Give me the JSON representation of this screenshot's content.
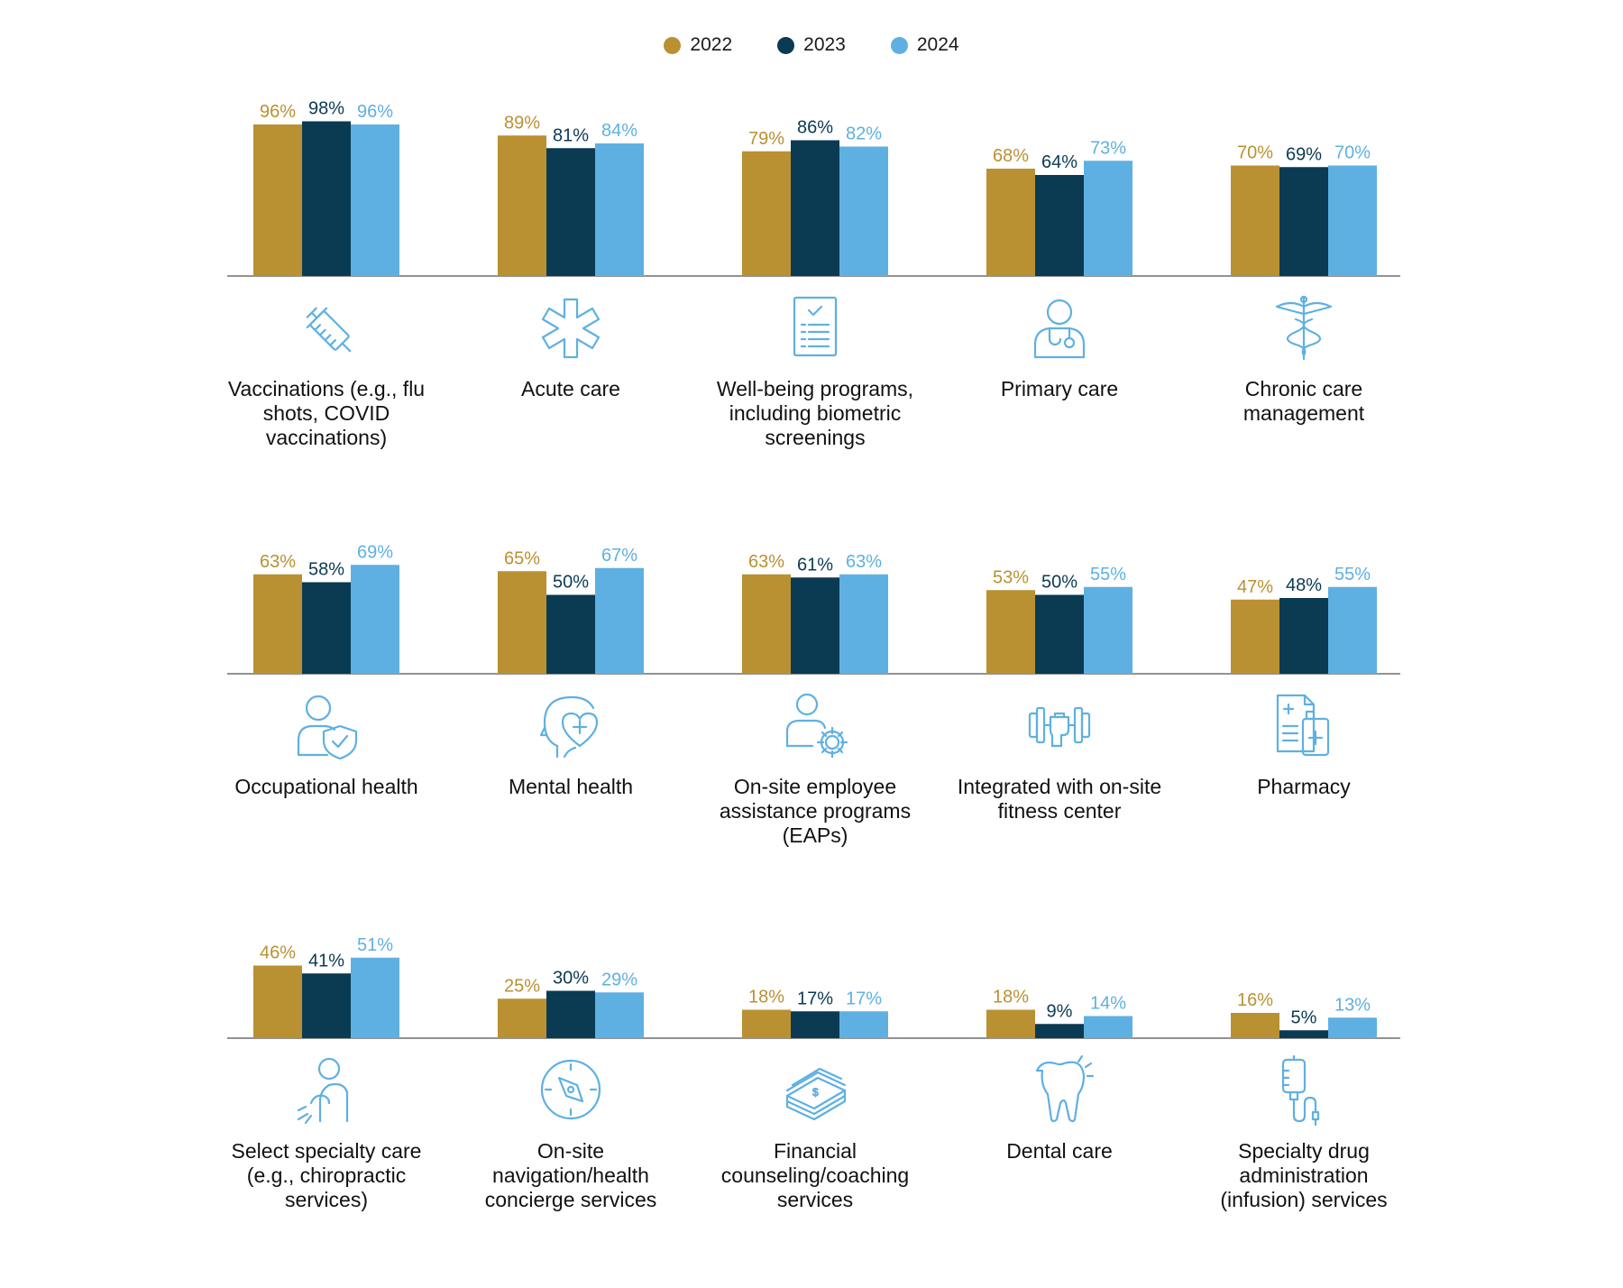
{
  "legend": [
    {
      "label": "2022",
      "color": "#B99132"
    },
    {
      "label": "2023",
      "color": "#0B3A53"
    },
    {
      "label": "2024",
      "color": "#5FB0E2"
    }
  ],
  "chart_data": {
    "type": "bar",
    "title": "",
    "xlabel": "",
    "ylabel": "",
    "ylim": [
      0,
      100
    ],
    "grid": false,
    "legend_position": "top-center",
    "series_names": [
      "2022",
      "2023",
      "2024"
    ],
    "groups": [
      {
        "category": "Vaccinations (e.g., flu shots, COVID vaccinations)",
        "icon": "syringe-icon",
        "values": [
          96,
          98,
          96
        ],
        "labels": [
          "96%",
          "98%",
          "96%"
        ]
      },
      {
        "category": "Acute care",
        "icon": "star-of-life-icon",
        "values": [
          89,
          81,
          84
        ],
        "labels": [
          "89%",
          "81%",
          "84%"
        ]
      },
      {
        "category": "Well-being programs, including biometric screenings",
        "icon": "checklist-icon",
        "values": [
          79,
          86,
          82
        ],
        "labels": [
          "79%",
          "86%",
          "82%"
        ]
      },
      {
        "category": "Primary care",
        "icon": "doctor-icon",
        "values": [
          68,
          64,
          73
        ],
        "labels": [
          "68%",
          "64%",
          "73%"
        ]
      },
      {
        "category": "Chronic care management",
        "icon": "caduceus-icon",
        "values": [
          70,
          69,
          70
        ],
        "labels": [
          "70%",
          "69%",
          "70%"
        ]
      },
      {
        "category": "Occupational health",
        "icon": "person-shield-icon",
        "values": [
          63,
          58,
          69
        ],
        "labels": [
          "63%",
          "58%",
          "69%"
        ]
      },
      {
        "category": "Mental health",
        "icon": "head-heart-icon",
        "values": [
          65,
          50,
          67
        ],
        "labels": [
          "65%",
          "50%",
          "67%"
        ]
      },
      {
        "category": "On-site employee assistance programs (EAPs)",
        "icon": "person-gear-icon",
        "values": [
          63,
          61,
          63
        ],
        "labels": [
          "63%",
          "61%",
          "63%"
        ]
      },
      {
        "category": "Integrated with on-site fitness center",
        "icon": "dumbbell-icon",
        "values": [
          53,
          50,
          55
        ],
        "labels": [
          "53%",
          "50%",
          "55%"
        ]
      },
      {
        "category": "Pharmacy",
        "icon": "prescription-icon",
        "values": [
          47,
          48,
          55
        ],
        "labels": [
          "47%",
          "48%",
          "55%"
        ]
      },
      {
        "category": "Select specialty care (e.g., chiropractic services)",
        "icon": "back-pain-icon",
        "values": [
          46,
          41,
          51
        ],
        "labels": [
          "46%",
          "41%",
          "51%"
        ]
      },
      {
        "category": "On-site navigation/health concierge services",
        "icon": "compass-icon",
        "values": [
          25,
          30,
          29
        ],
        "labels": [
          "25%",
          "30%",
          "29%"
        ]
      },
      {
        "category": "Financial counseling/coaching services",
        "icon": "money-stack-icon",
        "values": [
          18,
          17,
          17
        ],
        "labels": [
          "18%",
          "17%",
          "17%"
        ]
      },
      {
        "category": "Dental care",
        "icon": "tooth-icon",
        "values": [
          18,
          9,
          14
        ],
        "labels": [
          "18%",
          "9%",
          "14%"
        ]
      },
      {
        "category": "Specialty drug administration (infusion) services",
        "icon": "iv-drip-icon",
        "values": [
          16,
          5,
          13
        ],
        "labels": [
          "16%",
          "5%",
          "13%"
        ]
      }
    ]
  }
}
